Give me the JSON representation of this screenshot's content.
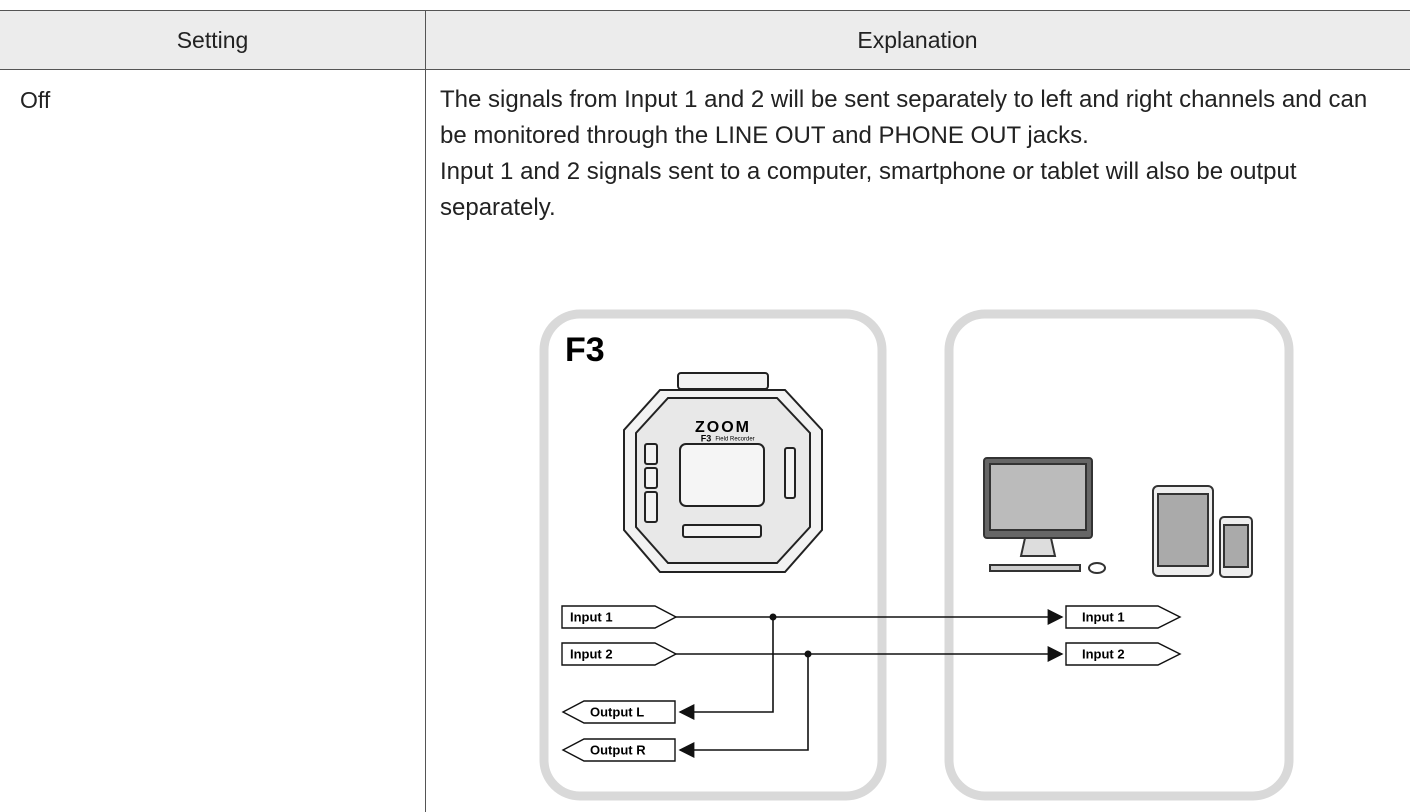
{
  "table": {
    "headers": [
      "Setting",
      "Explanation"
    ],
    "rows": [
      [
        "Off",
        [
          "The signals from Input 1 and 2 will be sent separately to left and right channels and can be monitored through the LINE OUT and PHONE OUT jacks.",
          "Input 1 and 2 signals sent to a computer, smartphone or tablet will also be output separately."
        ]
      ]
    ]
  },
  "diagram": {
    "device_label": "F3",
    "brand": "ZOOM",
    "model": "F3",
    "model_sub": "Field Recorder",
    "inputs": [
      "Input 1",
      "Input 2"
    ],
    "outputs": [
      "Output L",
      "Output R"
    ],
    "remote_inputs": [
      "Input 1",
      "Input 2"
    ]
  }
}
